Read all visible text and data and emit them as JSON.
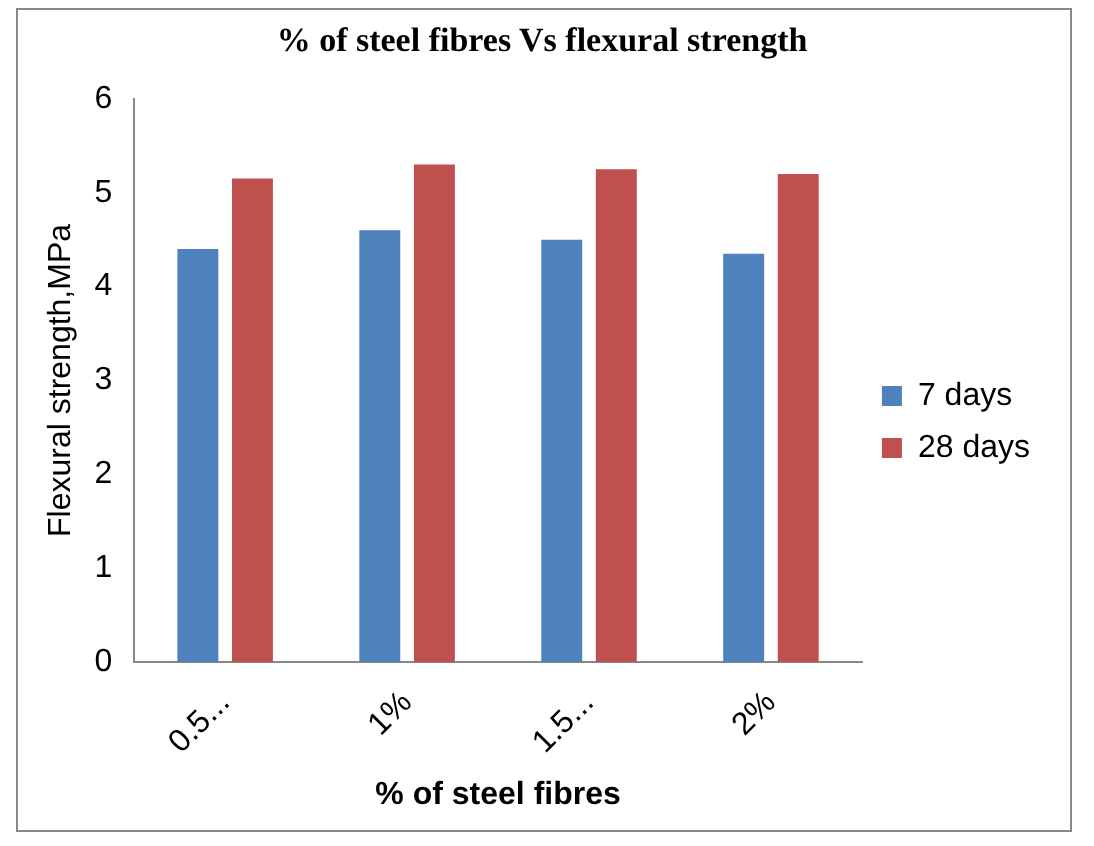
{
  "chart_data": {
    "type": "bar",
    "title": "% of steel fibres Vs flexural strength",
    "xlabel": "% of steel fibres",
    "ylabel": "Flexural strength,MPa",
    "categories": [
      "0.5...",
      "1%",
      "1.5...",
      "2%"
    ],
    "series": [
      {
        "name": "7 days",
        "color": "#4f81bd",
        "values": [
          4.4,
          4.6,
          4.5,
          4.35
        ]
      },
      {
        "name": "28 days",
        "color": "#c0504d",
        "values": [
          5.15,
          5.3,
          5.25,
          5.2
        ]
      }
    ],
    "ylim": [
      0,
      6
    ],
    "yticks": [
      0,
      1,
      2,
      3,
      4,
      5,
      6
    ],
    "grid": false,
    "legend": "right"
  }
}
